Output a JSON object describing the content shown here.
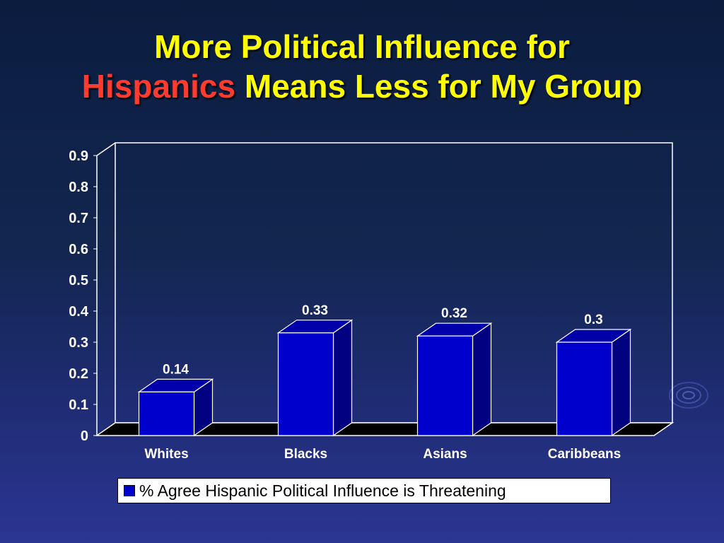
{
  "slide": {
    "title_line1": "More Political Influence for",
    "title_highlight": "Hispanics",
    "title_line2_rest": " Means Less for My Group"
  },
  "chart_data": {
    "type": "bar",
    "categories": [
      "Whites",
      "Blacks",
      "Asians",
      "Caribbeans"
    ],
    "series": [
      {
        "name": "% Agree Hispanic Political Influence is Threatening",
        "values": [
          0.14,
          0.33,
          0.32,
          0.3
        ]
      }
    ],
    "data_labels": [
      "0.14",
      "0.33",
      "0.32",
      "0.3"
    ],
    "yticks": [
      "0",
      "0.1",
      "0.2",
      "0.3",
      "0.4",
      "0.5",
      "0.6",
      "0.7",
      "0.8",
      "0.9"
    ],
    "ylim": [
      0,
      0.9
    ],
    "grid": false,
    "legend_position": "bottom",
    "bar_color": "#0000cc",
    "bar_side_color": "#000080",
    "bar_top_color": "#0000aa",
    "floor_color": "#000000"
  }
}
